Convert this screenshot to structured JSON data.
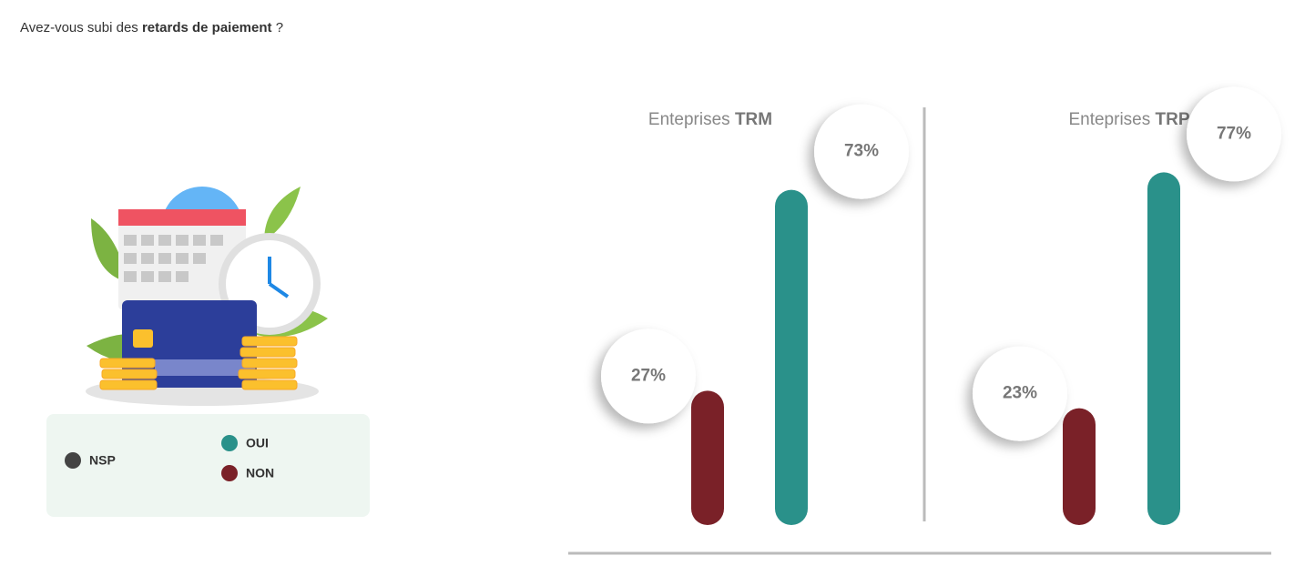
{
  "question": {
    "before": "Avez-vous subi des",
    "bold": "retards de paiement",
    "after": "?"
  },
  "legend": [
    {
      "name": "NSP",
      "color": "#444444"
    },
    {
      "name": "OUI",
      "color": "#2a918a"
    },
    {
      "name": "NON",
      "color": "#7a2128"
    }
  ],
  "chart_data": [
    {
      "type": "bar",
      "title": "Enteprises",
      "title_bold": "TRM",
      "ylim": [
        0,
        100
      ],
      "series": [
        {
          "color": "#7a2128",
          "values": [
            27
          ],
          "value_labels": [
            "27%"
          ]
        },
        {
          "color": "#2a918a",
          "values": [
            73
          ],
          "value_labels": [
            "73%"
          ]
        }
      ]
    },
    {
      "type": "bar",
      "title": "Enteprises",
      "title_bold": "TRP",
      "ylim": [
        0,
        100
      ],
      "series": [
        {
          "color": "#7a2128",
          "values": [
            23
          ],
          "value_labels": [
            "23%"
          ]
        },
        {
          "color": "#2a918a",
          "values": [
            77
          ],
          "value_labels": [
            "77%"
          ]
        }
      ]
    }
  ]
}
